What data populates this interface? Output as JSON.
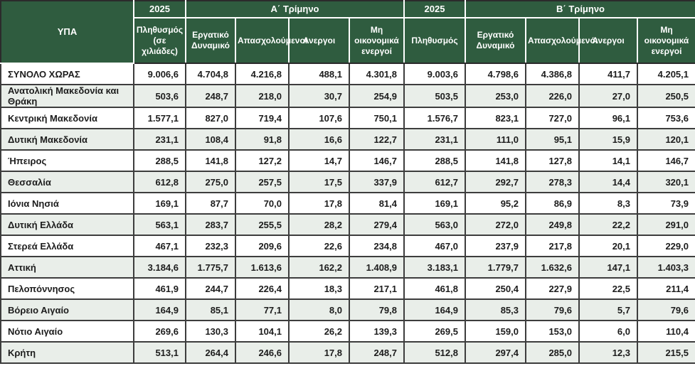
{
  "colors": {
    "header_green": "#2F5C3F",
    "stripe_row": "#E9EEE9",
    "grid_border": "#3d3d3d",
    "header_divider": "#ffffff",
    "header_text": "#ffffff",
    "body_text": "#1c1c1c"
  },
  "header": {
    "region_col": "ΥΠΑ",
    "year_a": "2025",
    "quarter_a": "Α΄ Τρίμηνο",
    "year_b": "2025",
    "quarter_b": "Β΄ Τρίμηνο",
    "cols_a": [
      "Πληθυσμός\n(σε χιλιάδες)",
      "Εργατικό Δυναμικό",
      "Απασχολούμενοι",
      "Ανεργοι",
      "Μη οικονομικά ενεργοί"
    ],
    "cols_b": [
      "Πληθυσμός",
      "Εργατικό Δυναμικό",
      "Απασχολούμενοι",
      "Άνεργοι",
      "Μη οικονομικά ενεργοί"
    ]
  },
  "rows": [
    {
      "region": "ΣΥΝΟΛΟ ΧΩΡΑΣ",
      "values": [
        "9.006,6",
        "4.704,8",
        "4.216,8",
        "488,1",
        "4.301,8",
        "9.003,6",
        "4.798,6",
        "4.386,8",
        "411,7",
        "4.205,1"
      ]
    },
    {
      "region": "Ανατολική Μακεδονία και Θράκη",
      "values": [
        "503,6",
        "248,7",
        "218,0",
        "30,7",
        "254,9",
        "503,5",
        "253,0",
        "226,0",
        "27,0",
        "250,5"
      ]
    },
    {
      "region": "Κεντρική Μακεδονία",
      "values": [
        "1.577,1",
        "827,0",
        "719,4",
        "107,6",
        "750,1",
        "1.576,7",
        "823,1",
        "727,0",
        "96,1",
        "753,6"
      ]
    },
    {
      "region": "Δυτική Μακεδονία",
      "values": [
        "231,1",
        "108,4",
        "91,8",
        "16,6",
        "122,7",
        "231,1",
        "111,0",
        "95,1",
        "15,9",
        "120,1"
      ]
    },
    {
      "region": "Ήπειρος",
      "values": [
        "288,5",
        "141,8",
        "127,2",
        "14,7",
        "146,7",
        "288,5",
        "141,8",
        "127,8",
        "14,1",
        "146,7"
      ]
    },
    {
      "region": "Θεσσαλία",
      "values": [
        "612,8",
        "275,0",
        "257,5",
        "17,5",
        "337,9",
        "612,7",
        "292,7",
        "278,3",
        "14,4",
        "320,1"
      ]
    },
    {
      "region": "Ιόνια Νησιά",
      "values": [
        "169,1",
        "87,7",
        "70,0",
        "17,8",
        "81,4",
        "169,1",
        "95,2",
        "86,9",
        "8,3",
        "73,9"
      ]
    },
    {
      "region": "Δυτική Ελλάδα",
      "values": [
        "563,1",
        "283,7",
        "255,5",
        "28,2",
        "279,4",
        "563,0",
        "272,0",
        "249,8",
        "22,2",
        "291,0"
      ]
    },
    {
      "region": "Στερεά Ελλάδα",
      "values": [
        "467,1",
        "232,3",
        "209,6",
        "22,6",
        "234,8",
        "467,0",
        "237,9",
        "217,8",
        "20,1",
        "229,0"
      ]
    },
    {
      "region": "Αττική",
      "values": [
        "3.184,6",
        "1.775,7",
        "1.613,6",
        "162,2",
        "1.408,9",
        "3.183,1",
        "1.779,7",
        "1.632,6",
        "147,1",
        "1.403,3"
      ]
    },
    {
      "region": "Πελοπόννησος",
      "values": [
        "461,9",
        "244,7",
        "226,4",
        "18,3",
        "217,1",
        "461,8",
        "250,4",
        "227,9",
        "22,5",
        "211,4"
      ]
    },
    {
      "region": "Βόρειο Αιγαίο",
      "values": [
        "164,9",
        "85,1",
        "77,1",
        "8,0",
        "79,8",
        "164,9",
        "85,3",
        "79,6",
        "5,7",
        "79,6"
      ]
    },
    {
      "region": "Νότιο Αιγαίο",
      "values": [
        "269,6",
        "130,3",
        "104,1",
        "26,2",
        "139,3",
        "269,5",
        "159,0",
        "153,0",
        "6,0",
        "110,4"
      ]
    },
    {
      "region": "Κρήτη",
      "values": [
        "513,1",
        "264,4",
        "246,6",
        "17,8",
        "248,7",
        "512,8",
        "297,4",
        "285,0",
        "12,3",
        "215,5"
      ]
    }
  ]
}
